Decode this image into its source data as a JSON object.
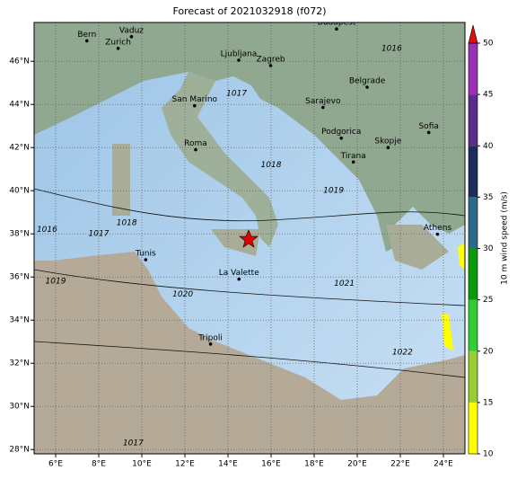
{
  "map": {
    "title": "Forecast of 2021032918 (f072)",
    "lon_range": [
      5,
      25
    ],
    "lat_range": [
      27.8,
      47.8
    ],
    "lon_ticks": [
      {
        "value": 6,
        "label": "6°E"
      },
      {
        "value": 8,
        "label": "8°E"
      },
      {
        "value": 10,
        "label": "10°E"
      },
      {
        "value": 12,
        "label": "12°E"
      },
      {
        "value": 14,
        "label": "14°E"
      },
      {
        "value": 16,
        "label": "16°E"
      },
      {
        "value": 18,
        "label": "18°E"
      },
      {
        "value": 20,
        "label": "20°E"
      },
      {
        "value": 22,
        "label": "22°E"
      },
      {
        "value": 24,
        "label": "24°E"
      }
    ],
    "lat_ticks": [
      {
        "value": 28,
        "label": "28°N"
      },
      {
        "value": 30,
        "label": "30°N"
      },
      {
        "value": 32,
        "label": "32°N"
      },
      {
        "value": 34,
        "label": "34°N"
      },
      {
        "value": 36,
        "label": "36°N"
      },
      {
        "value": 38,
        "label": "38°N"
      },
      {
        "value": 40,
        "label": "40°N"
      },
      {
        "value": 42,
        "label": "42°N"
      },
      {
        "value": 44,
        "label": "44°N"
      },
      {
        "value": 46,
        "label": "46°N"
      }
    ],
    "grid": true,
    "cities": [
      {
        "name": "Bern",
        "lon": 7.45,
        "lat": 46.95
      },
      {
        "name": "Vaduz",
        "lon": 9.52,
        "lat": 47.14
      },
      {
        "name": "Zurich",
        "lon": 8.9,
        "lat": 46.6
      },
      {
        "name": "Budapest",
        "lon": 19.04,
        "lat": 47.5
      },
      {
        "name": "Ljubljana",
        "lon": 14.5,
        "lat": 46.05
      },
      {
        "name": "Zagreb",
        "lon": 15.98,
        "lat": 45.8
      },
      {
        "name": "San Marino",
        "lon": 12.45,
        "lat": 43.94
      },
      {
        "name": "Belgrade",
        "lon": 20.46,
        "lat": 44.8
      },
      {
        "name": "Sarajevo",
        "lon": 18.41,
        "lat": 43.86
      },
      {
        "name": "Roma",
        "lon": 12.5,
        "lat": 41.9
      },
      {
        "name": "Podgorica",
        "lon": 19.26,
        "lat": 42.44
      },
      {
        "name": "Sofia",
        "lon": 23.32,
        "lat": 42.7
      },
      {
        "name": "Skopje",
        "lon": 21.43,
        "lat": 42.0
      },
      {
        "name": "Tirana",
        "lon": 19.82,
        "lat": 41.33
      },
      {
        "name": "Athens",
        "lon": 23.73,
        "lat": 37.98
      },
      {
        "name": "Tunis",
        "lon": 10.18,
        "lat": 36.8
      },
      {
        "name": "La Valette",
        "lon": 14.51,
        "lat": 35.9
      },
      {
        "name": "Tripoli",
        "lon": 13.19,
        "lat": 32.89
      }
    ],
    "isobar_labels": [
      {
        "text": "1016",
        "lon": 5.6,
        "lat": 38.2
      },
      {
        "text": "1017",
        "lon": 8.0,
        "lat": 38.0
      },
      {
        "text": "1018",
        "lon": 9.3,
        "lat": 38.5
      },
      {
        "text": "1019",
        "lon": 6.0,
        "lat": 35.8
      },
      {
        "text": "1020",
        "lon": 11.9,
        "lat": 35.2
      },
      {
        "text": "1021",
        "lon": 19.4,
        "lat": 35.7
      },
      {
        "text": "1022",
        "lon": 22.1,
        "lat": 32.5
      },
      {
        "text": "1017",
        "lon": 14.4,
        "lat": 44.5
      },
      {
        "text": "1018",
        "lon": 16.0,
        "lat": 41.2
      },
      {
        "text": "1019",
        "lon": 18.9,
        "lat": 40.0
      },
      {
        "text": "1016",
        "lon": 21.6,
        "lat": 46.6
      },
      {
        "text": "1017",
        "lon": 9.6,
        "lat": 28.3
      }
    ],
    "colorbar": {
      "label": "10 m wind speed (m/s)",
      "ticks": [
        10,
        15,
        20,
        25,
        30,
        35,
        40,
        45,
        50
      ],
      "colors": [
        "#ffff00",
        "#9acd32",
        "#32cd32",
        "#0a9a0a",
        "#2c6a8c",
        "#1c2c5c",
        "#5c2c8c",
        "#9c30b4"
      ],
      "extend_color": "#e01010"
    }
  }
}
